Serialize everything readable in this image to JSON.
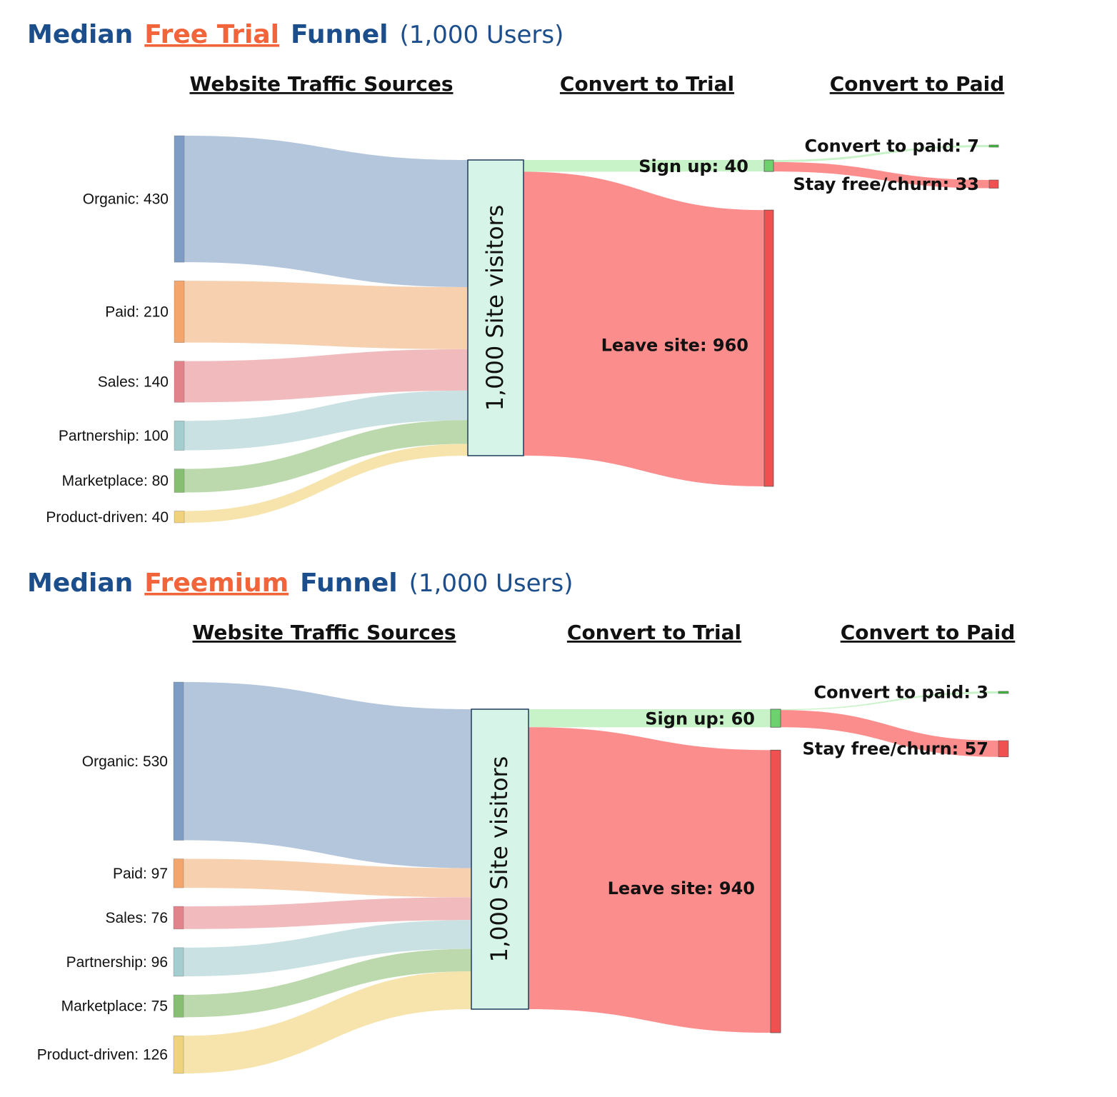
{
  "chart_data": [
    {
      "type": "sankey",
      "title": {
        "prefix": "Median",
        "accent": "Free Trial",
        "suffix": "Funnel",
        "note": "(1,000 Users)"
      },
      "column_headers": [
        "Website Traffic Sources",
        "Convert to Trial",
        "Convert to Paid"
      ],
      "sources": [
        {
          "name": "Organic",
          "value": 430,
          "label": "Organic: 430",
          "color": "#b0c3da",
          "node_color": "#7f9cc4"
        },
        {
          "name": "Paid",
          "value": 210,
          "label": "Paid: 210",
          "color": "#f7ceab",
          "node_color": "#f3a56b"
        },
        {
          "name": "Sales",
          "value": 140,
          "label": "Sales: 140",
          "color": "#f0b7bb",
          "node_color": "#e2828a"
        },
        {
          "name": "Partnership",
          "value": 100,
          "label": "Partnership: 100",
          "color": "#c6dfe0",
          "node_color": "#a4cdd0"
        },
        {
          "name": "Marketplace",
          "value": 80,
          "label": "Marketplace: 80",
          "color": "#b7d7a8",
          "node_color": "#86bf72"
        },
        {
          "name": "Product-driven",
          "value": 40,
          "label": "Product-driven: 40",
          "color": "#f6e3a8",
          "node_color": "#f0d27c"
        }
      ],
      "center": {
        "value": 1000,
        "label": "1,000 Site visitors",
        "color": "#d6f5e8"
      },
      "trial": [
        {
          "name": "Sign up",
          "value": 40,
          "label": "Sign up: 40",
          "color": "#c8f2c8",
          "node_color": "#6dd26d"
        },
        {
          "name": "Leave site",
          "value": 960,
          "label": "Leave site: 960",
          "color": "#fc8d8d",
          "node_color": "#f05050"
        }
      ],
      "paid": [
        {
          "name": "Convert to paid",
          "value": 7,
          "label": "Convert to paid: 7",
          "color": "#c8f2c8",
          "node_color": "#3dbb3d"
        },
        {
          "name": "Stay free/churn",
          "value": 33,
          "label": "Stay free/churn: 33",
          "color": "#fc8d8d",
          "node_color": "#f05050"
        }
      ]
    },
    {
      "type": "sankey",
      "title": {
        "prefix": "Median",
        "accent": "Freemium",
        "suffix": "Funnel",
        "note": "(1,000 Users)"
      },
      "column_headers": [
        "Website Traffic Sources",
        "Convert to Trial",
        "Convert to Paid"
      ],
      "sources": [
        {
          "name": "Organic",
          "value": 530,
          "label": "Organic: 530",
          "color": "#b0c3da",
          "node_color": "#7f9cc4"
        },
        {
          "name": "Paid",
          "value": 97,
          "label": "Paid: 97",
          "color": "#f7ceab",
          "node_color": "#f3a56b"
        },
        {
          "name": "Sales",
          "value": 76,
          "label": "Sales: 76",
          "color": "#f0b7bb",
          "node_color": "#e2828a"
        },
        {
          "name": "Partnership",
          "value": 96,
          "label": "Partnership: 96",
          "color": "#c6dfe0",
          "node_color": "#a4cdd0"
        },
        {
          "name": "Marketplace",
          "value": 75,
          "label": "Marketplace: 75",
          "color": "#b7d7a8",
          "node_color": "#86bf72"
        },
        {
          "name": "Product-driven",
          "value": 126,
          "label": "Product-driven: 126",
          "color": "#f6e3a8",
          "node_color": "#f0d27c"
        }
      ],
      "center": {
        "value": 1000,
        "label": "1,000 Site visitors",
        "color": "#d6f5e8"
      },
      "trial": [
        {
          "name": "Sign up",
          "value": 60,
          "label": "Sign up: 60",
          "color": "#c8f2c8",
          "node_color": "#6dd26d"
        },
        {
          "name": "Leave site",
          "value": 940,
          "label": "Leave site: 940",
          "color": "#fc8d8d",
          "node_color": "#f05050"
        }
      ],
      "paid": [
        {
          "name": "Convert to paid",
          "value": 3,
          "label": "Convert to paid: 3",
          "color": "#c8f2c8",
          "node_color": "#3dbb3d"
        },
        {
          "name": "Stay free/churn",
          "value": 57,
          "label": "Stay free/churn: 57",
          "color": "#fc8d8d",
          "node_color": "#f05050"
        }
      ]
    }
  ]
}
